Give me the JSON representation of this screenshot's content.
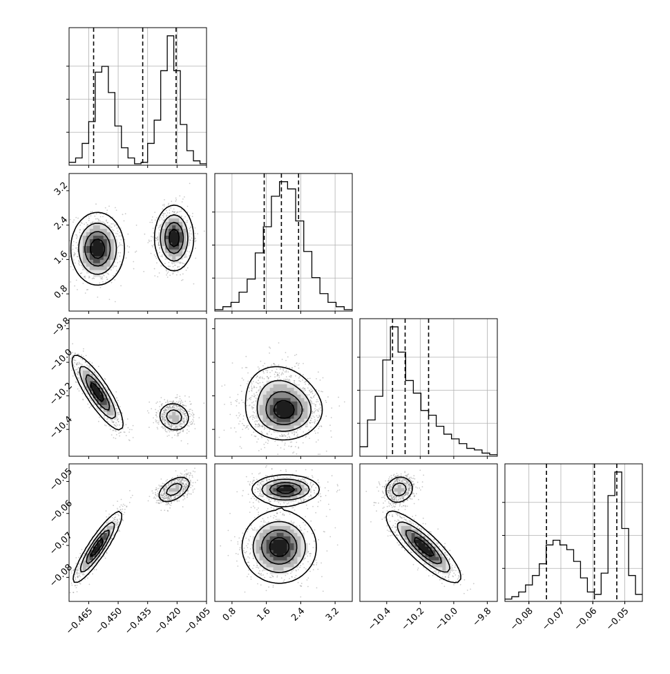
{
  "figure": {
    "type": "corner",
    "parameters": 4
  },
  "chart_data": [
    {
      "type": "histogram",
      "panel": "p1",
      "xlim": [
        -0.475,
        -0.405
      ],
      "xticks": [
        -0.465,
        -0.45,
        -0.435,
        -0.42,
        -0.405
      ],
      "xticklabels": [
        "−0.465",
        "−0.450",
        "−0.435",
        "−0.420",
        "−0.405"
      ],
      "counts": [
        0.02,
        0.05,
        0.15,
        0.3,
        0.64,
        0.68,
        0.5,
        0.27,
        0.12,
        0.05,
        0.01,
        0.02,
        0.15,
        0.31,
        0.65,
        0.89,
        0.65,
        0.28,
        0.1,
        0.03,
        0.01
      ],
      "quantiles": [
        -0.4625,
        -0.4375,
        -0.4205
      ],
      "grid": true
    },
    {
      "type": "histogram",
      "panel": "p2",
      "xlim": [
        0.4,
        3.6
      ],
      "xticks": [
        0.8,
        1.6,
        2.4,
        3.2
      ],
      "xticklabels": [
        "0.8",
        "1.6",
        "2.4",
        "3.2"
      ],
      "counts": [
        0.01,
        0.03,
        0.06,
        0.13,
        0.22,
        0.4,
        0.58,
        0.79,
        0.89,
        0.84,
        0.62,
        0.41,
        0.23,
        0.12,
        0.06,
        0.03,
        0.01
      ],
      "quantiles": [
        1.55,
        1.95,
        2.35
      ],
      "grid": true
    },
    {
      "type": "histogram",
      "panel": "p3",
      "xlim": [
        -10.56,
        -9.74
      ],
      "xticks": [
        -10.4,
        -10.2,
        -10.0,
        -9.8
      ],
      "xticklabels": [
        "−10.4",
        "−10.2",
        "−10.0",
        "−9.8"
      ],
      "counts": [
        0.06,
        0.23,
        0.38,
        0.61,
        0.82,
        0.66,
        0.48,
        0.4,
        0.29,
        0.26,
        0.19,
        0.14,
        0.11,
        0.08,
        0.05,
        0.04,
        0.02,
        0.01
      ],
      "quantiles": [
        -10.365,
        -10.29,
        -10.15
      ],
      "grid": true
    },
    {
      "type": "histogram",
      "panel": "p4",
      "xlim": [
        -0.0875,
        -0.0445
      ],
      "xticks": [
        -0.08,
        -0.07,
        -0.06,
        -0.05
      ],
      "xticklabels": [
        "−0.08",
        "−0.07",
        "−0.06",
        "−0.05"
      ],
      "counts": [
        0.01,
        0.02,
        0.04,
        0.07,
        0.11,
        0.16,
        0.24,
        0.26,
        0.24,
        0.22,
        0.17,
        0.1,
        0.04,
        0.03,
        0.12,
        0.45,
        0.55,
        0.31,
        0.11,
        0.03
      ],
      "quantiles": [
        -0.0745,
        -0.0595,
        -0.0525
      ],
      "grid": true
    },
    {
      "type": "contour",
      "panel": "c21",
      "xlim": [
        -0.475,
        -0.405
      ],
      "ylim": [
        0.4,
        3.6
      ],
      "yticks": [
        0.8,
        1.6,
        2.4,
        3.2
      ],
      "yticklabels": [
        "0.8",
        "1.6",
        "2.4",
        "3.2"
      ],
      "modes": [
        {
          "center": [
            -0.4605,
            1.85
          ],
          "spread": [
            0.0066,
            0.41
          ],
          "rho": 0.0,
          "weight": 0.5
        },
        {
          "center": [
            -0.4215,
            2.1
          ],
          "spread": [
            0.0048,
            0.37
          ],
          "rho": 0.0,
          "weight": 0.5
        }
      ]
    },
    {
      "type": "contour",
      "panel": "c31",
      "xlim": [
        -0.475,
        -0.405
      ],
      "ylim": [
        -10.56,
        -9.74
      ],
      "yticks": [
        -10.4,
        -10.2,
        -10.0,
        -9.8
      ],
      "yticklabels": [
        "−10.4",
        "−10.2",
        "−10.0",
        "−9.8"
      ],
      "modes": [
        {
          "center": [
            -0.4605,
            -10.18
          ],
          "spread": [
            0.0063,
            0.108
          ],
          "rho": -0.85,
          "weight": 0.5
        },
        {
          "center": [
            -0.4215,
            -10.325
          ],
          "spread": [
            0.0042,
            0.045
          ],
          "rho": -0.1,
          "weight": 0.5
        }
      ]
    },
    {
      "type": "contour",
      "panel": "c32",
      "xlim": [
        0.4,
        3.6
      ],
      "ylim": [
        -10.56,
        -9.74
      ],
      "modes": [
        {
          "center": [
            2.02,
            -10.31
          ],
          "spread": [
            0.42,
            0.075
          ],
          "rho": 0.1,
          "weight": 0.5
        },
        {
          "center": [
            1.95,
            -10.22
          ],
          "spread": [
            0.45,
            0.11
          ],
          "rho": -0.15,
          "weight": 0.5
        }
      ]
    },
    {
      "type": "contour",
      "panel": "c41",
      "xlim": [
        -0.475,
        -0.405
      ],
      "ylim": [
        -0.0875,
        -0.0445
      ],
      "yticks": [
        -0.08,
        -0.07,
        -0.06,
        -0.05
      ],
      "yticklabels": [
        "−0.08",
        "−0.07",
        "−0.06",
        "−0.05"
      ],
      "xticks": [
        -0.465,
        -0.45,
        -0.435,
        -0.42,
        -0.405
      ],
      "xticklabels": [
        "−0.465",
        "−0.450",
        "−0.435",
        "−0.420",
        "−0.405"
      ],
      "modes": [
        {
          "center": [
            -0.4605,
            -0.0705
          ],
          "spread": [
            0.006,
            0.0054
          ],
          "rho": 0.9,
          "weight": 0.5
        },
        {
          "center": [
            -0.4215,
            -0.0525
          ],
          "spread": [
            0.0045,
            0.0022
          ],
          "rho": 0.5,
          "weight": 0.5
        }
      ]
    },
    {
      "type": "contour",
      "panel": "c42",
      "xlim": [
        0.4,
        3.6
      ],
      "ylim": [
        -0.0875,
        -0.0445
      ],
      "xticks": [
        0.8,
        1.6,
        2.4,
        3.2
      ],
      "xticklabels": [
        "0.8",
        "1.6",
        "2.4",
        "3.2"
      ],
      "modes": [
        {
          "center": [
            2.05,
            -0.0525
          ],
          "spread": [
            0.38,
            0.0022
          ],
          "rho": 0.0,
          "weight": 0.5
        },
        {
          "center": [
            1.9,
            -0.0705
          ],
          "spread": [
            0.42,
            0.0055
          ],
          "rho": 0.0,
          "weight": 0.5
        }
      ]
    },
    {
      "type": "contour",
      "panel": "c43",
      "xlim": [
        -10.56,
        -9.74
      ],
      "ylim": [
        -0.0875,
        -0.0445
      ],
      "xticks": [
        -10.4,
        -10.2,
        -10.0,
        -9.8
      ],
      "xticklabels": [
        "−10.4",
        "−10.2",
        "−10.0",
        "−9.8"
      ],
      "modes": [
        {
          "center": [
            -10.325,
            -0.0525
          ],
          "spread": [
            0.045,
            0.0022
          ],
          "rho": 0.1,
          "weight": 0.5
        },
        {
          "center": [
            -10.18,
            -0.0705
          ],
          "spread": [
            0.108,
            0.0054
          ],
          "rho": -0.85,
          "weight": 0.5
        }
      ]
    }
  ]
}
